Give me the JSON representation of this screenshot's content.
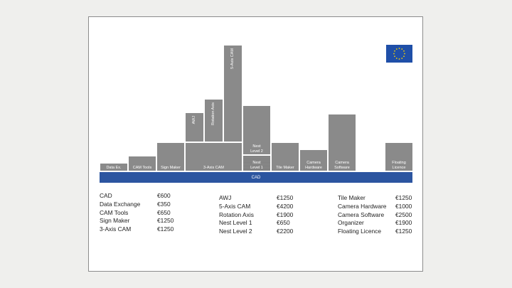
{
  "diagram": {
    "blocks": [
      {
        "label": "Data Ex."
      },
      {
        "label": "CAM Tools"
      },
      {
        "label": "Sign Maker"
      },
      {
        "label": "3-Axis CAM"
      },
      {
        "label": "AWJ"
      },
      {
        "label": "Rotation Axis"
      },
      {
        "label": "5-Axis CAM"
      },
      {
        "label": "Nest Level 2"
      },
      {
        "label": "Nest Level 1"
      },
      {
        "label": "Tile Maker"
      },
      {
        "label": "Camera Hardware"
      },
      {
        "label": "Camera Software"
      },
      {
        "label": "Floating Licence"
      }
    ],
    "base_label": "CAD"
  },
  "colors": {
    "block": "#8a8a8a",
    "base": "#2c55a0",
    "flag_blue": "#1f4fa8",
    "flag_star": "#f6d200"
  },
  "icons": {
    "flag": "eu-flag-icon"
  },
  "price_columns": [
    [
      {
        "name": "CAD",
        "price": "€600"
      },
      {
        "name": "Data Exchange",
        "price": "€350"
      },
      {
        "name": "CAM Tools",
        "price": "€650"
      },
      {
        "name": "Sign Maker",
        "price": "€1250"
      },
      {
        "name": "3-Axis CAM",
        "price": "€1250"
      }
    ],
    [
      {
        "name": "AWJ",
        "price": "€1250"
      },
      {
        "name": "5-Axis CAM",
        "price": "€4200"
      },
      {
        "name": "Rotation Axis",
        "price": "€1900"
      },
      {
        "name": "Nest Level 1",
        "price": "€650"
      },
      {
        "name": "Nest Level 2",
        "price": "€2200"
      }
    ],
    [
      {
        "name": "Tile Maker",
        "price": "€1250"
      },
      {
        "name": "Camera Hardware",
        "price": "€1000"
      },
      {
        "name": "Camera Software",
        "price": "€2500"
      },
      {
        "name": "Organizer",
        "price": "€1900"
      },
      {
        "name": "Floating Licence",
        "price": "€1250"
      }
    ]
  ]
}
